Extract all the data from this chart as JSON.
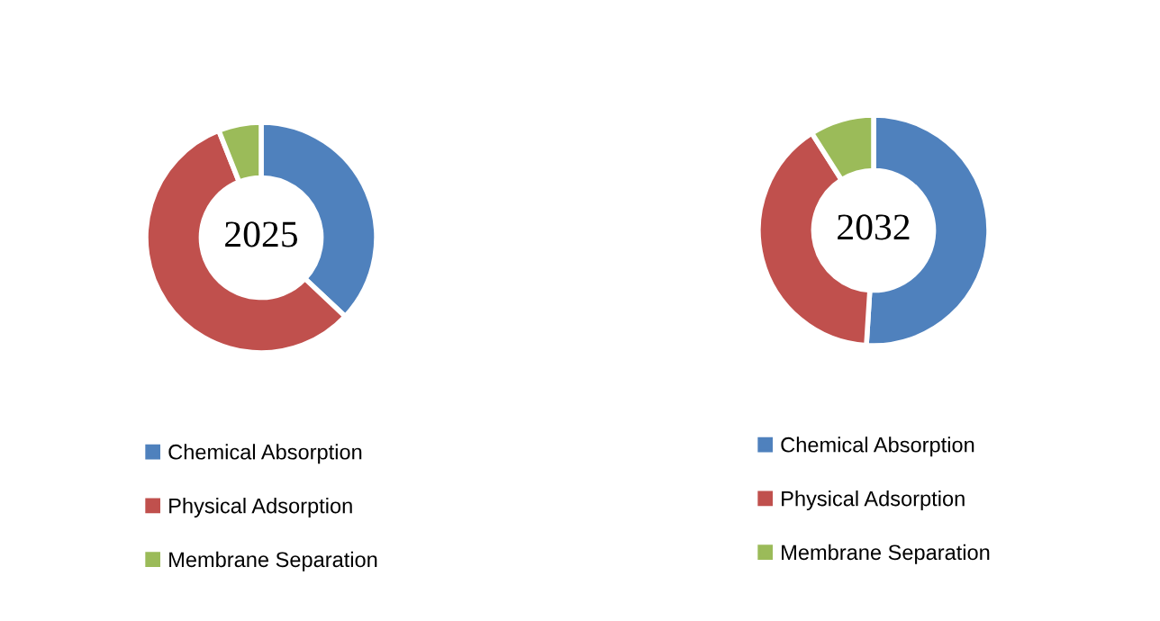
{
  "chart_data": [
    {
      "type": "donut",
      "title": "2025",
      "categories": [
        "Chemical Absorption",
        "Physical Adsorption",
        "Membrane Separation"
      ],
      "values": [
        37,
        57,
        6
      ],
      "colors": [
        "#4f81bd",
        "#c0504d",
        "#9bbb59"
      ],
      "legend": "bottom"
    },
    {
      "type": "donut",
      "title": "2032",
      "categories": [
        "Chemical Absorption",
        "Physical Adsorption",
        "Membrane Separation"
      ],
      "values": [
        51,
        40,
        9
      ],
      "colors": [
        "#4f81bd",
        "#c0504d",
        "#9bbb59"
      ],
      "legend": "bottom"
    }
  ]
}
